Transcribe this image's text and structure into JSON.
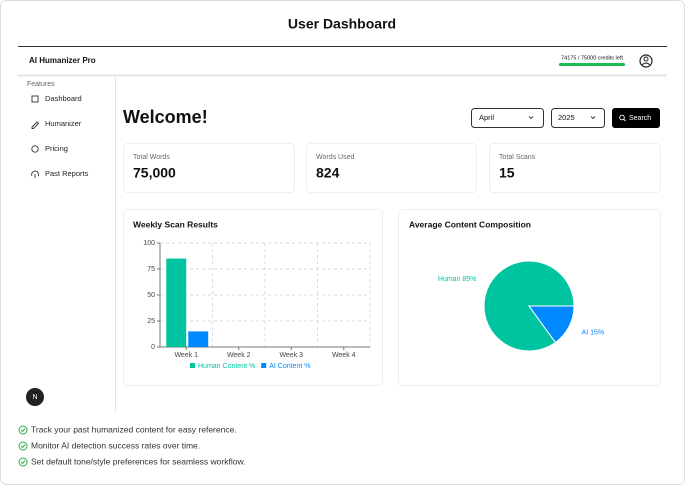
{
  "page_title": "User Dashboard",
  "app_name": "AI Humanizer Pro",
  "credits": "74175 / 75000 credits left",
  "sidebar": {
    "section": "Features",
    "items": [
      "Dashboard",
      "Humanizer",
      "Pricing",
      "Past Reports"
    ]
  },
  "welcome": "Welcome!",
  "filters": {
    "month": "April",
    "year": "2025",
    "button": "Search"
  },
  "stats": [
    {
      "label": "Total Words",
      "value": "75,000"
    },
    {
      "label": "Words Used",
      "value": "824"
    },
    {
      "label": "Total Scans",
      "value": "15"
    }
  ],
  "badge": "N",
  "chart_data": [
    {
      "type": "bar",
      "title": "Weekly Scan Results",
      "categories": [
        "Week 1",
        "Week 2",
        "Week 3",
        "Week 4"
      ],
      "series": [
        {
          "name": "Human Content %",
          "color": "#00c49f",
          "values": [
            85,
            null,
            null,
            null
          ]
        },
        {
          "name": "AI Content %",
          "color": "#0088fe",
          "values": [
            15,
            null,
            null,
            null
          ]
        }
      ],
      "ylim": [
        0,
        100
      ],
      "yticks": [
        0,
        25,
        50,
        75,
        100
      ],
      "grid": true
    },
    {
      "type": "pie",
      "title": "Average Content Composition",
      "categories": [
        "Human",
        "AI"
      ],
      "values": [
        85,
        15
      ],
      "value_labels": [
        "Human 85%",
        "AI 15%"
      ],
      "colors": [
        "#00c49f",
        "#0088fe"
      ]
    }
  ],
  "features": [
    "Track your past humanized content for easy reference.",
    "Monitor AI detection success rates over time.",
    "Set default tone/style preferences for seamless workflow."
  ]
}
